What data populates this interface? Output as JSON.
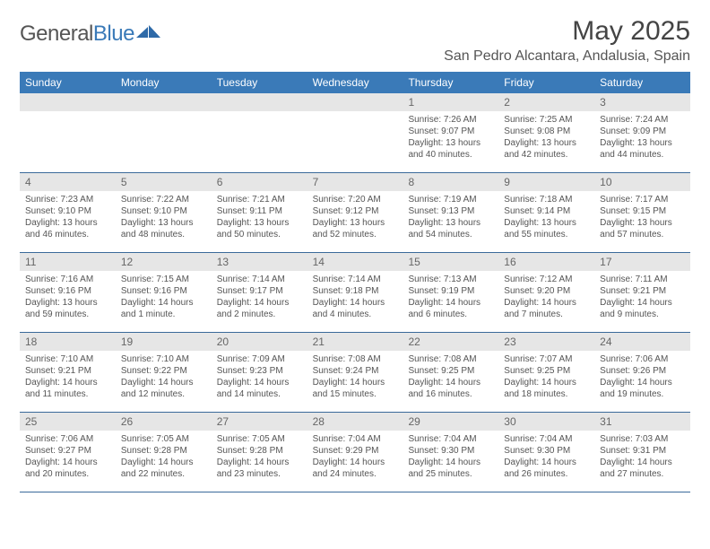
{
  "logo": {
    "textGray": "General",
    "textBlue": "Blue"
  },
  "title": "May 2025",
  "location": "San Pedro Alcantara, Andalusia, Spain",
  "colors": {
    "headerBlue": "#3a7ab8",
    "grayBar": "#e6e6e6",
    "rowBorder": "#3a6a9a",
    "textGray": "#555555"
  },
  "dayNames": [
    "Sunday",
    "Monday",
    "Tuesday",
    "Wednesday",
    "Thursday",
    "Friday",
    "Saturday"
  ],
  "weeks": [
    [
      {
        "num": "",
        "lines": []
      },
      {
        "num": "",
        "lines": []
      },
      {
        "num": "",
        "lines": []
      },
      {
        "num": "",
        "lines": []
      },
      {
        "num": "1",
        "lines": [
          "Sunrise: 7:26 AM",
          "Sunset: 9:07 PM",
          "Daylight: 13 hours",
          "and 40 minutes."
        ]
      },
      {
        "num": "2",
        "lines": [
          "Sunrise: 7:25 AM",
          "Sunset: 9:08 PM",
          "Daylight: 13 hours",
          "and 42 minutes."
        ]
      },
      {
        "num": "3",
        "lines": [
          "Sunrise: 7:24 AM",
          "Sunset: 9:09 PM",
          "Daylight: 13 hours",
          "and 44 minutes."
        ]
      }
    ],
    [
      {
        "num": "4",
        "lines": [
          "Sunrise: 7:23 AM",
          "Sunset: 9:10 PM",
          "Daylight: 13 hours",
          "and 46 minutes."
        ]
      },
      {
        "num": "5",
        "lines": [
          "Sunrise: 7:22 AM",
          "Sunset: 9:10 PM",
          "Daylight: 13 hours",
          "and 48 minutes."
        ]
      },
      {
        "num": "6",
        "lines": [
          "Sunrise: 7:21 AM",
          "Sunset: 9:11 PM",
          "Daylight: 13 hours",
          "and 50 minutes."
        ]
      },
      {
        "num": "7",
        "lines": [
          "Sunrise: 7:20 AM",
          "Sunset: 9:12 PM",
          "Daylight: 13 hours",
          "and 52 minutes."
        ]
      },
      {
        "num": "8",
        "lines": [
          "Sunrise: 7:19 AM",
          "Sunset: 9:13 PM",
          "Daylight: 13 hours",
          "and 54 minutes."
        ]
      },
      {
        "num": "9",
        "lines": [
          "Sunrise: 7:18 AM",
          "Sunset: 9:14 PM",
          "Daylight: 13 hours",
          "and 55 minutes."
        ]
      },
      {
        "num": "10",
        "lines": [
          "Sunrise: 7:17 AM",
          "Sunset: 9:15 PM",
          "Daylight: 13 hours",
          "and 57 minutes."
        ]
      }
    ],
    [
      {
        "num": "11",
        "lines": [
          "Sunrise: 7:16 AM",
          "Sunset: 9:16 PM",
          "Daylight: 13 hours",
          "and 59 minutes."
        ]
      },
      {
        "num": "12",
        "lines": [
          "Sunrise: 7:15 AM",
          "Sunset: 9:16 PM",
          "Daylight: 14 hours",
          "and 1 minute."
        ]
      },
      {
        "num": "13",
        "lines": [
          "Sunrise: 7:14 AM",
          "Sunset: 9:17 PM",
          "Daylight: 14 hours",
          "and 2 minutes."
        ]
      },
      {
        "num": "14",
        "lines": [
          "Sunrise: 7:14 AM",
          "Sunset: 9:18 PM",
          "Daylight: 14 hours",
          "and 4 minutes."
        ]
      },
      {
        "num": "15",
        "lines": [
          "Sunrise: 7:13 AM",
          "Sunset: 9:19 PM",
          "Daylight: 14 hours",
          "and 6 minutes."
        ]
      },
      {
        "num": "16",
        "lines": [
          "Sunrise: 7:12 AM",
          "Sunset: 9:20 PM",
          "Daylight: 14 hours",
          "and 7 minutes."
        ]
      },
      {
        "num": "17",
        "lines": [
          "Sunrise: 7:11 AM",
          "Sunset: 9:21 PM",
          "Daylight: 14 hours",
          "and 9 minutes."
        ]
      }
    ],
    [
      {
        "num": "18",
        "lines": [
          "Sunrise: 7:10 AM",
          "Sunset: 9:21 PM",
          "Daylight: 14 hours",
          "and 11 minutes."
        ]
      },
      {
        "num": "19",
        "lines": [
          "Sunrise: 7:10 AM",
          "Sunset: 9:22 PM",
          "Daylight: 14 hours",
          "and 12 minutes."
        ]
      },
      {
        "num": "20",
        "lines": [
          "Sunrise: 7:09 AM",
          "Sunset: 9:23 PM",
          "Daylight: 14 hours",
          "and 14 minutes."
        ]
      },
      {
        "num": "21",
        "lines": [
          "Sunrise: 7:08 AM",
          "Sunset: 9:24 PM",
          "Daylight: 14 hours",
          "and 15 minutes."
        ]
      },
      {
        "num": "22",
        "lines": [
          "Sunrise: 7:08 AM",
          "Sunset: 9:25 PM",
          "Daylight: 14 hours",
          "and 16 minutes."
        ]
      },
      {
        "num": "23",
        "lines": [
          "Sunrise: 7:07 AM",
          "Sunset: 9:25 PM",
          "Daylight: 14 hours",
          "and 18 minutes."
        ]
      },
      {
        "num": "24",
        "lines": [
          "Sunrise: 7:06 AM",
          "Sunset: 9:26 PM",
          "Daylight: 14 hours",
          "and 19 minutes."
        ]
      }
    ],
    [
      {
        "num": "25",
        "lines": [
          "Sunrise: 7:06 AM",
          "Sunset: 9:27 PM",
          "Daylight: 14 hours",
          "and 20 minutes."
        ]
      },
      {
        "num": "26",
        "lines": [
          "Sunrise: 7:05 AM",
          "Sunset: 9:28 PM",
          "Daylight: 14 hours",
          "and 22 minutes."
        ]
      },
      {
        "num": "27",
        "lines": [
          "Sunrise: 7:05 AM",
          "Sunset: 9:28 PM",
          "Daylight: 14 hours",
          "and 23 minutes."
        ]
      },
      {
        "num": "28",
        "lines": [
          "Sunrise: 7:04 AM",
          "Sunset: 9:29 PM",
          "Daylight: 14 hours",
          "and 24 minutes."
        ]
      },
      {
        "num": "29",
        "lines": [
          "Sunrise: 7:04 AM",
          "Sunset: 9:30 PM",
          "Daylight: 14 hours",
          "and 25 minutes."
        ]
      },
      {
        "num": "30",
        "lines": [
          "Sunrise: 7:04 AM",
          "Sunset: 9:30 PM",
          "Daylight: 14 hours",
          "and 26 minutes."
        ]
      },
      {
        "num": "31",
        "lines": [
          "Sunrise: 7:03 AM",
          "Sunset: 9:31 PM",
          "Daylight: 14 hours",
          "and 27 minutes."
        ]
      }
    ]
  ]
}
